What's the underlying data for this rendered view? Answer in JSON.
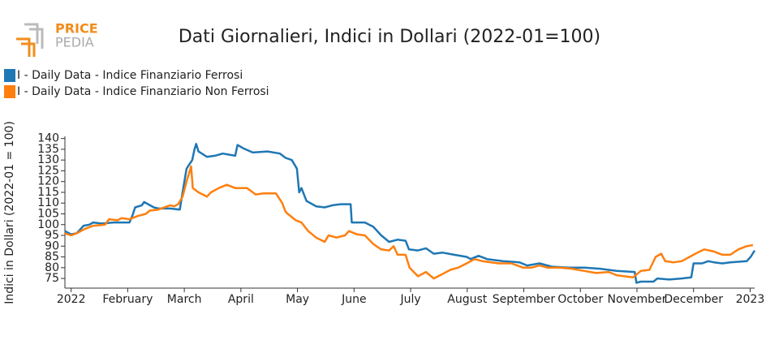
{
  "logo": {
    "top": "PRICE",
    "bottom": "PEDIA"
  },
  "chart_data": {
    "type": "line",
    "title": "Dati Giornalieri, Indici in Dollari (2022-01=100)",
    "ylabel": "Indici in Dollari (2022-01 = 100)",
    "legend": "top-left",
    "grid": false,
    "xlim": [
      -0.11,
      12.08
    ],
    "ylim": [
      70.5,
      141
    ],
    "xticks": [
      {
        "value": 0,
        "label": "2022"
      },
      {
        "value": 1,
        "label": "February"
      },
      {
        "value": 2,
        "label": "March"
      },
      {
        "value": 3,
        "label": "April"
      },
      {
        "value": 4,
        "label": "May"
      },
      {
        "value": 5,
        "label": "June"
      },
      {
        "value": 6,
        "label": "July"
      },
      {
        "value": 7,
        "label": "August"
      },
      {
        "value": 8,
        "label": "September"
      },
      {
        "value": 9,
        "label": "October"
      },
      {
        "value": 10,
        "label": "November"
      },
      {
        "value": 11,
        "label": "December"
      },
      {
        "value": 12,
        "label": "2023"
      }
    ],
    "yticks": [
      75,
      80,
      85,
      90,
      95,
      100,
      105,
      110,
      115,
      120,
      125,
      130,
      135,
      140
    ],
    "series": [
      {
        "name": "I - Daily Data - Indice Finanziario Ferrosi",
        "color": "#1f77b4",
        "x": [
          -0.11,
          0,
          0.1,
          0.22,
          0.32,
          0.39,
          0.53,
          0.75,
          1.03,
          1.08,
          1.13,
          1.25,
          1.29,
          1.46,
          1.54,
          1.75,
          1.92,
          1.97,
          2.04,
          2.14,
          2.18,
          2.21,
          2.25,
          2.4,
          2.54,
          2.68,
          2.9,
          2.94,
          3.04,
          3.21,
          3.47,
          3.69,
          3.79,
          3.9,
          3.99,
          4.03,
          4.07,
          4.16,
          4.33,
          4.48,
          4.62,
          4.76,
          4.94,
          4.96,
          5.19,
          5.34,
          5.48,
          5.62,
          5.77,
          5.91,
          5.97,
          6.13,
          6.27,
          6.41,
          6.56,
          6.77,
          6.99,
          7.06,
          7.2,
          7.35,
          7.63,
          7.92,
          8.06,
          8.28,
          8.49,
          8.78,
          9.07,
          9.35,
          9.64,
          9.96,
          9.99,
          10.07,
          10.29,
          10.36,
          10.57,
          10.79,
          10.96,
          11.0,
          11.15,
          11.26,
          11.36,
          11.51,
          11.65,
          11.94,
          12.01,
          12.08
        ],
        "values": [
          97,
          95.5,
          96,
          99.5,
          100,
          101,
          100.5,
          101,
          101,
          104,
          108,
          109,
          110.5,
          108,
          107.5,
          107.5,
          107,
          115,
          126,
          130,
          135,
          137.5,
          134,
          131.5,
          132,
          133,
          132,
          137,
          135.5,
          133.5,
          134,
          133,
          131,
          130,
          126,
          115,
          117,
          111,
          108.5,
          108,
          109,
          109.5,
          109.5,
          101,
          101,
          99,
          95,
          92,
          93,
          92.5,
          88.5,
          88,
          89,
          86.5,
          87,
          86,
          85,
          84,
          85.5,
          84,
          83,
          82.5,
          81,
          82,
          80.5,
          80,
          80,
          79.5,
          78.5,
          78,
          73,
          73.5,
          73.5,
          75,
          74.5,
          75,
          75.5,
          82,
          82,
          83,
          82.5,
          82,
          82.5,
          83,
          85,
          88
        ]
      },
      {
        "name": "I - Daily Data - Indice Finanziario Non Ferrosi",
        "color": "#ff7f0e",
        "x": [
          -0.11,
          0,
          0.1,
          0.24,
          0.39,
          0.6,
          0.67,
          0.82,
          0.89,
          1.03,
          1.18,
          1.32,
          1.39,
          1.54,
          1.75,
          1.82,
          1.89,
          1.97,
          2.04,
          2.12,
          2.15,
          2.25,
          2.4,
          2.47,
          2.61,
          2.75,
          2.9,
          3.11,
          3.26,
          3.4,
          3.62,
          3.73,
          3.79,
          3.83,
          3.97,
          4.07,
          4.19,
          4.33,
          4.48,
          4.55,
          4.69,
          4.84,
          4.91,
          5.05,
          5.19,
          5.34,
          5.48,
          5.62,
          5.7,
          5.77,
          5.91,
          5.98,
          6.13,
          6.27,
          6.41,
          6.56,
          6.7,
          6.84,
          6.99,
          7.13,
          7.27,
          7.42,
          7.56,
          7.78,
          7.99,
          8.13,
          8.28,
          8.42,
          8.64,
          8.85,
          9.07,
          9.28,
          9.5,
          9.64,
          9.93,
          10.07,
          10.22,
          10.33,
          10.43,
          10.5,
          10.65,
          10.79,
          10.93,
          11.07,
          11.19,
          11.36,
          11.51,
          11.65,
          11.79,
          11.94,
          12.05
        ],
        "values": [
          96,
          95,
          96,
          98,
          99.5,
          100,
          102.5,
          102,
          103,
          102.5,
          104,
          105,
          106.5,
          107,
          109,
          108.5,
          109.5,
          113,
          120,
          127,
          117,
          115,
          113,
          115,
          117,
          118.5,
          117,
          117,
          114,
          114.5,
          114.5,
          110,
          106,
          105,
          102,
          101,
          97,
          94,
          92,
          95,
          94,
          95,
          97,
          95.5,
          95,
          91,
          88.5,
          88,
          90,
          86,
          86,
          80,
          76,
          78,
          75,
          77,
          79,
          80,
          82,
          84,
          83,
          82.5,
          82,
          82,
          80,
          80,
          81,
          80,
          80,
          79.5,
          78.5,
          77.5,
          78,
          76.5,
          75.5,
          78.5,
          79,
          85,
          86.5,
          83,
          82.5,
          83,
          85,
          87,
          88.5,
          87.5,
          86,
          86,
          88.5,
          90,
          90.5
        ]
      }
    ]
  }
}
